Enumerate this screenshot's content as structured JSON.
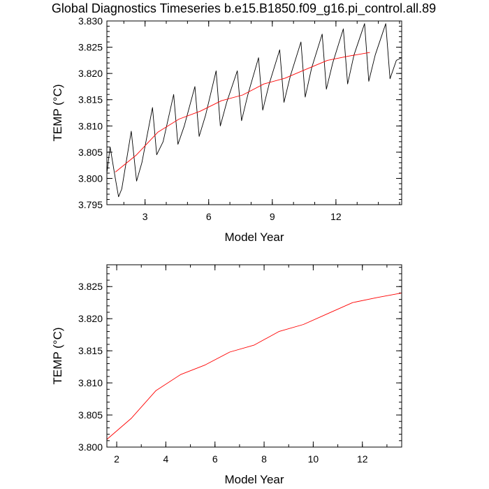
{
  "title": "Global Diagnostics Timeseries b.e15.B1850.f09_g16.pi_control.all.89",
  "chart_data": [
    {
      "type": "line",
      "xlabel": "Model Year",
      "ylabel": "TEMP (°C)",
      "xlim": [
        1.2,
        15.1
      ],
      "ylim": [
        3.795,
        3.83
      ],
      "xticks": [
        3,
        6,
        9,
        12
      ],
      "yticks": [
        3.795,
        3.8,
        3.805,
        3.81,
        3.815,
        3.82,
        3.825,
        3.83
      ],
      "ytick_labels": [
        "3.795",
        "3.800",
        "3.805",
        "3.810",
        "3.815",
        "3.820",
        "3.825",
        "3.830"
      ],
      "series": [
        {
          "color": "#000000",
          "x": [
            1.2,
            1.35,
            1.6,
            1.75,
            1.9,
            2.35,
            2.6,
            2.85,
            3.35,
            3.55,
            3.85,
            4.35,
            4.55,
            4.85,
            5.35,
            5.55,
            5.85,
            6.35,
            6.55,
            6.85,
            7.35,
            7.55,
            7.85,
            8.35,
            8.55,
            8.85,
            9.35,
            9.55,
            9.85,
            10.35,
            10.55,
            10.85,
            11.35,
            11.55,
            11.85,
            12.35,
            12.55,
            12.85,
            13.35,
            13.55,
            13.85,
            14.35,
            14.55,
            14.85,
            15.1
          ],
          "y": [
            3.801,
            3.806,
            3.8,
            3.7965,
            3.798,
            3.809,
            3.7995,
            3.803,
            3.8135,
            3.8045,
            3.807,
            3.816,
            3.8065,
            3.81,
            3.8175,
            3.808,
            3.812,
            3.8205,
            3.81,
            3.8145,
            3.8205,
            3.811,
            3.816,
            3.823,
            3.813,
            3.818,
            3.8245,
            3.8145,
            3.8195,
            3.826,
            3.8155,
            3.821,
            3.8275,
            3.817,
            3.822,
            3.8285,
            3.818,
            3.8235,
            3.8295,
            3.8185,
            3.8235,
            3.8295,
            3.819,
            3.8225,
            3.823
          ]
        },
        {
          "color": "#ff0000",
          "x": [
            1.6,
            2.6,
            3.6,
            4.6,
            5.6,
            6.6,
            7.6,
            8.6,
            9.6,
            10.6,
            11.6,
            12.6,
            13.6
          ],
          "y": [
            3.8012,
            3.8045,
            3.8088,
            3.8113,
            3.8128,
            3.8148,
            3.8159,
            3.818,
            3.8191,
            3.8208,
            3.8225,
            3.8233,
            3.824
          ]
        }
      ]
    },
    {
      "type": "line",
      "xlabel": "Model Year",
      "ylabel": "TEMP (°C)",
      "xlim": [
        1.6,
        13.6
      ],
      "ylim": [
        3.8,
        3.8284
      ],
      "xticks": [
        2,
        4,
        6,
        8,
        10,
        12
      ],
      "yticks": [
        3.8,
        3.805,
        3.81,
        3.815,
        3.82,
        3.825
      ],
      "ytick_labels": [
        "3.800",
        "3.805",
        "3.810",
        "3.815",
        "3.820",
        "3.825"
      ],
      "series": [
        {
          "color": "#ff0000",
          "x": [
            1.6,
            2.6,
            3.6,
            4.6,
            5.6,
            6.6,
            7.6,
            8.6,
            9.6,
            10.6,
            11.6,
            12.6,
            13.6
          ],
          "y": [
            3.8012,
            3.8045,
            3.8088,
            3.8113,
            3.8128,
            3.8148,
            3.8159,
            3.818,
            3.8191,
            3.8208,
            3.8225,
            3.8233,
            3.824
          ]
        }
      ]
    }
  ]
}
